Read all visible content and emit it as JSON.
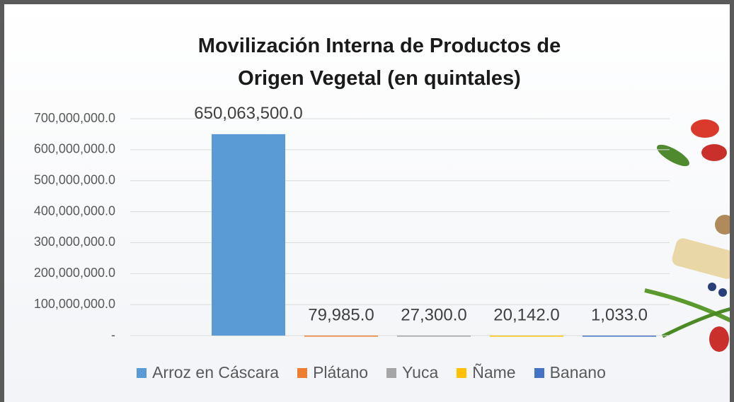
{
  "chart_data": {
    "type": "bar",
    "title": "Movilización Interna de Productos de Origen Vegetal (en quintales)",
    "categories": [
      null
    ],
    "series": [
      {
        "name": "Arroz en Cáscara",
        "color": "#5b9bd5",
        "values": [
          650063500
        ],
        "value_labels": [
          "650,063,500.0"
        ]
      },
      {
        "name": "Plátano",
        "color": "#ed7d31",
        "values": [
          79985
        ],
        "value_labels": [
          "79,985.0"
        ]
      },
      {
        "name": "Yuca",
        "color": "#a5a5a5",
        "values": [
          27300
        ],
        "value_labels": [
          "27,300.0"
        ]
      },
      {
        "name": "Ñame",
        "color": "#ffc000",
        "values": [
          20142
        ],
        "value_labels": [
          "20,142.0"
        ]
      },
      {
        "name": "Banano",
        "color": "#4472c4",
        "values": [
          1033
        ],
        "value_labels": [
          "1,033.0"
        ]
      }
    ],
    "ylim": [
      0,
      700000000
    ],
    "yticks": [
      {
        "value": 0,
        "label": "-"
      },
      {
        "value": 100000000,
        "label": "100,000,000.0"
      },
      {
        "value": 200000000,
        "label": "200,000,000.0"
      },
      {
        "value": 300000000,
        "label": "300,000,000.0"
      },
      {
        "value": 400000000,
        "label": "400,000,000.0"
      },
      {
        "value": 500000000,
        "label": "500,000,000.0"
      },
      {
        "value": 600000000,
        "label": "600,000,000.0"
      },
      {
        "value": 700000000,
        "label": "700,000,000.0"
      }
    ],
    "grid": true
  }
}
